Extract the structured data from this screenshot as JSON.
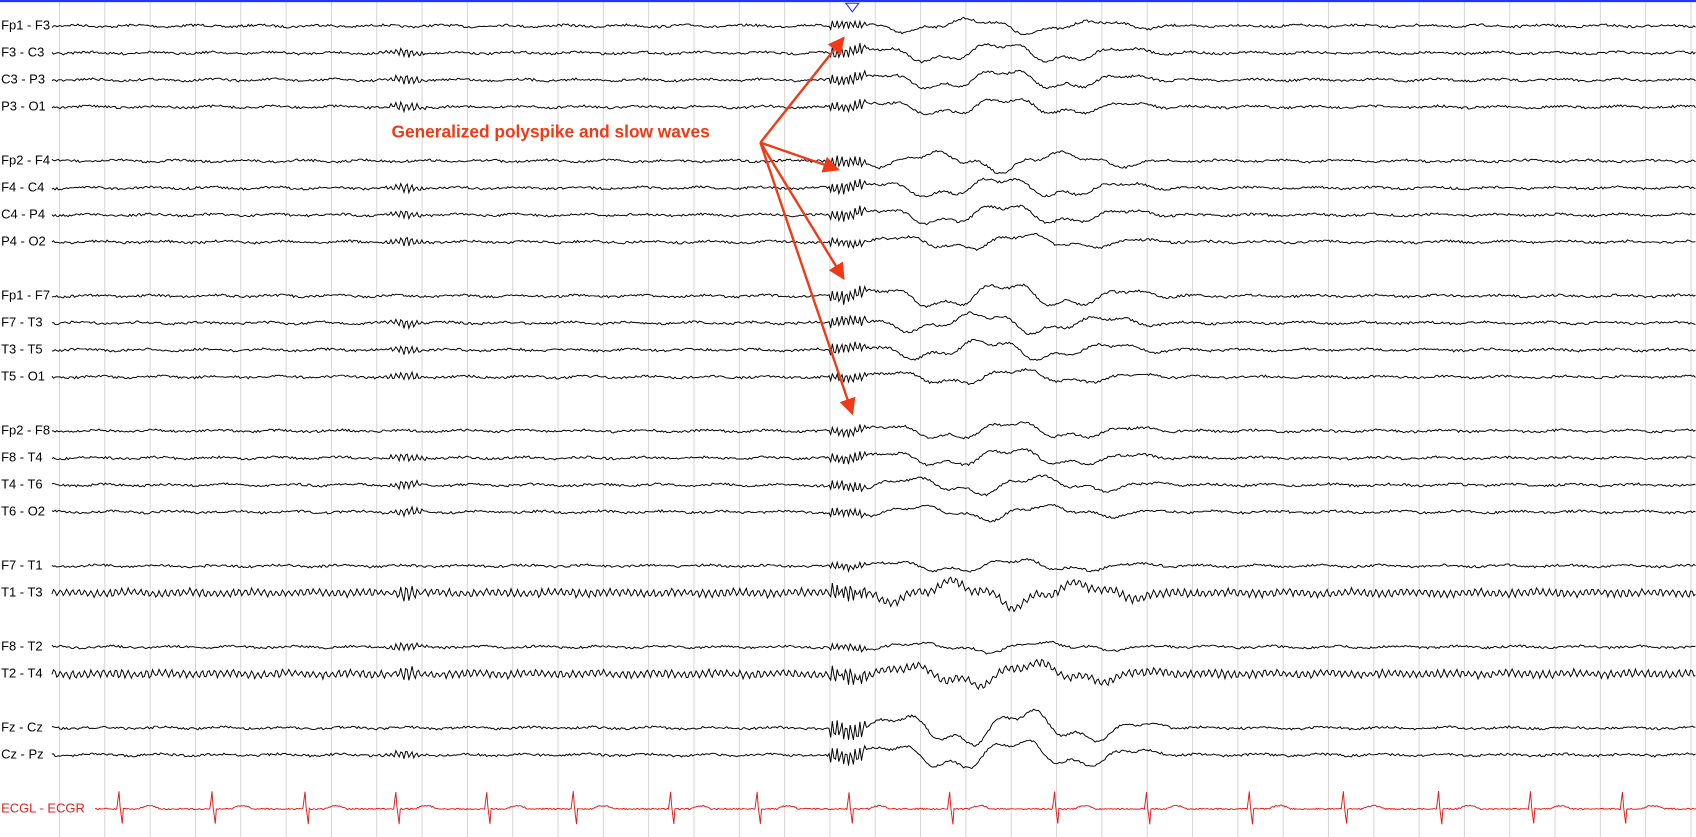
{
  "channels": [
    "Fp1 - F3",
    "F3 - C3",
    "C3 - P3",
    "P3 - O1",
    "Fp2 - F4",
    "F4 - C4",
    "C4 - P4",
    "P4 - O2",
    "Fp1 - F7",
    "F7 - T3",
    "T3 - T5",
    "T5 - O1",
    "Fp2 - F8",
    "F8 - T4",
    "T4 - T6",
    "T6 - O2",
    "F7 - T1",
    "T1 - T3",
    "F8 - T2",
    "T2 - T4",
    "Fz - Cz",
    "Cz - Pz"
  ],
  "ecg_channel": "ECGL - ECGR",
  "annotation": "Generalized polyspike and slow waves"
}
